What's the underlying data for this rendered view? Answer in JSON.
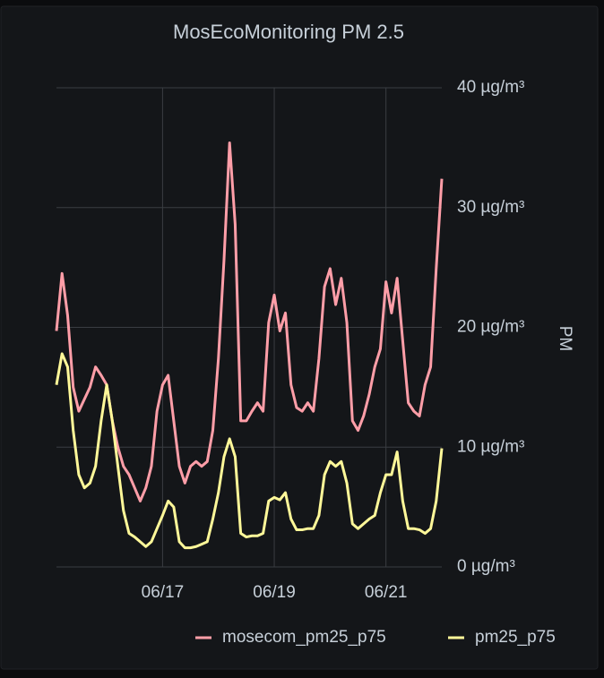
{
  "chart_data": {
    "type": "line",
    "title": "MosEcoMonitoring PM 2.5",
    "y_label": "PM",
    "x": [
      15.1,
      15.2,
      15.3,
      15.4,
      15.5,
      15.6,
      15.7,
      15.8,
      15.9,
      16.0,
      16.1,
      16.2,
      16.3,
      16.4,
      16.5,
      16.6,
      16.7,
      16.8,
      16.9,
      17.0,
      17.1,
      17.2,
      17.3,
      17.4,
      17.5,
      17.6,
      17.7,
      17.8,
      17.9,
      18.0,
      18.1,
      18.2,
      18.3,
      18.4,
      18.5,
      18.6,
      18.7,
      18.8,
      18.9,
      19.0,
      19.1,
      19.2,
      19.3,
      19.4,
      19.5,
      19.6,
      19.7,
      19.8,
      19.9,
      20.0,
      20.1,
      20.2,
      20.3,
      20.4,
      20.5,
      20.6,
      20.7,
      20.8,
      20.9,
      21.0,
      21.1,
      21.2,
      21.3,
      21.4,
      21.5,
      21.6,
      21.7,
      21.8,
      21.9,
      22.0
    ],
    "series": [
      {
        "name": "mosecom_pm25_p75",
        "color": "#ff9ea8",
        "values": [
          19.7,
          24.5,
          21,
          15,
          13,
          14,
          15,
          16.7,
          16,
          15.2,
          12.2,
          10,
          8.4,
          7.7,
          6.6,
          5.5,
          6.6,
          8.4,
          13,
          15.2,
          16,
          12.2,
          8.4,
          7,
          8.4,
          8.8,
          8.4,
          8.8,
          11.4,
          17.4,
          25.6,
          35.4,
          28.6,
          12.2,
          12.2,
          13,
          13.7,
          13,
          20.4,
          22.7,
          19.7,
          21.2,
          15.2,
          13.3,
          13,
          13.7,
          13,
          17.4,
          23.4,
          24.9,
          21.9,
          24.1,
          20.4,
          12.2,
          11.4,
          12.6,
          14.4,
          16.7,
          18.2,
          23.8,
          21.2,
          24.1,
          18.9,
          13.7,
          13,
          12.6,
          15.2,
          16.7,
          24.9,
          32.4
        ]
      },
      {
        "name": "pm25_p75",
        "color": "#fff899",
        "values": [
          15.2,
          17.8,
          16.7,
          11.4,
          7.7,
          6.6,
          7,
          8.4,
          12.2,
          15.2,
          12.2,
          8.4,
          4.7,
          2.8,
          2.5,
          2.1,
          1.7,
          2.1,
          3.2,
          4.3,
          5.5,
          5,
          2.1,
          1.6,
          1.6,
          1.7,
          1.9,
          2.1,
          4,
          6.2,
          9.2,
          10.7,
          9.2,
          2.8,
          2.5,
          2.6,
          2.6,
          2.8,
          5.5,
          5.8,
          5.6,
          6.2,
          4,
          3.1,
          3.1,
          3.2,
          3.2,
          4.3,
          7.7,
          8.8,
          8.4,
          8.8,
          7,
          3.6,
          3.2,
          3.6,
          4,
          4.3,
          6.2,
          7.7,
          7.7,
          9.6,
          5.5,
          3.2,
          3.2,
          3.1,
          2.8,
          3.2,
          5.5,
          9.9
        ]
      }
    ],
    "xlim": [
      15.1,
      22.0
    ],
    "xticks": [
      {
        "value": 17,
        "label": "06/17"
      },
      {
        "value": 19,
        "label": "06/19"
      },
      {
        "value": 21,
        "label": "06/21"
      }
    ],
    "ylim": [
      0,
      40
    ],
    "yticks": [
      {
        "value": 0,
        "label": "0 µg/m³"
      },
      {
        "value": 10,
        "label": "10 µg/m³"
      },
      {
        "value": 20,
        "label": "20 µg/m³"
      },
      {
        "value": 30,
        "label": "30 µg/m³"
      },
      {
        "value": 40,
        "label": "40 µg/m³"
      }
    ],
    "grid": true,
    "legend": "bottom"
  }
}
